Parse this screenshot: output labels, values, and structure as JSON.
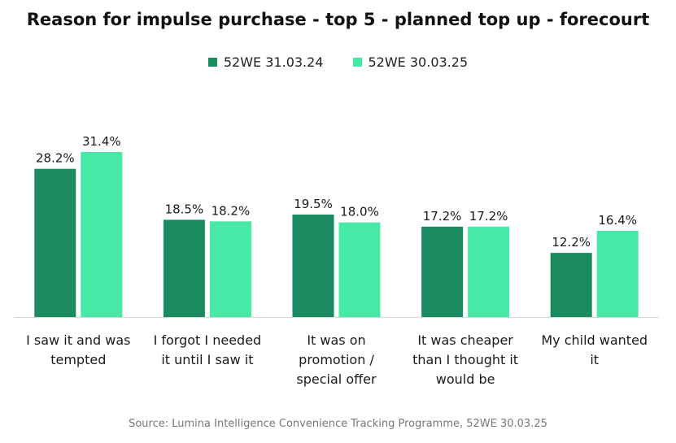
{
  "chart_data": {
    "type": "bar",
    "title": "Reason for impulse purchase - top 5 - planned top up - forecourt",
    "categories": [
      [
        "I saw it and was",
        "tempted"
      ],
      [
        "I forgot I needed",
        "it until I saw it"
      ],
      [
        "It was on",
        "promotion /",
        "special offer"
      ],
      [
        "It was cheaper",
        "than I thought it",
        "would be"
      ],
      [
        "My child wanted",
        "it"
      ]
    ],
    "series": [
      {
        "name": "52WE 31.03.24",
        "color": "#1b8a61",
        "values": [
          28.2,
          18.5,
          19.5,
          17.2,
          12.2
        ],
        "labels": [
          "28.2%",
          "18.5%",
          "19.5%",
          "17.2%",
          "12.2%"
        ]
      },
      {
        "name": "52WE 30.03.25",
        "color": "#48e8a6",
        "values": [
          31.4,
          18.2,
          18.0,
          17.2,
          16.4
        ],
        "labels": [
          "31.4%",
          "18.2%",
          "18.0%",
          "17.2%",
          "16.4%"
        ]
      }
    ],
    "xlabel": "",
    "ylabel": "",
    "ylim": [
      0,
      31.4
    ],
    "grid": false,
    "legend": "top-center",
    "source": "Source: Lumina Intelligence Convenience Tracking Programme, 52WE 30.03.25"
  }
}
